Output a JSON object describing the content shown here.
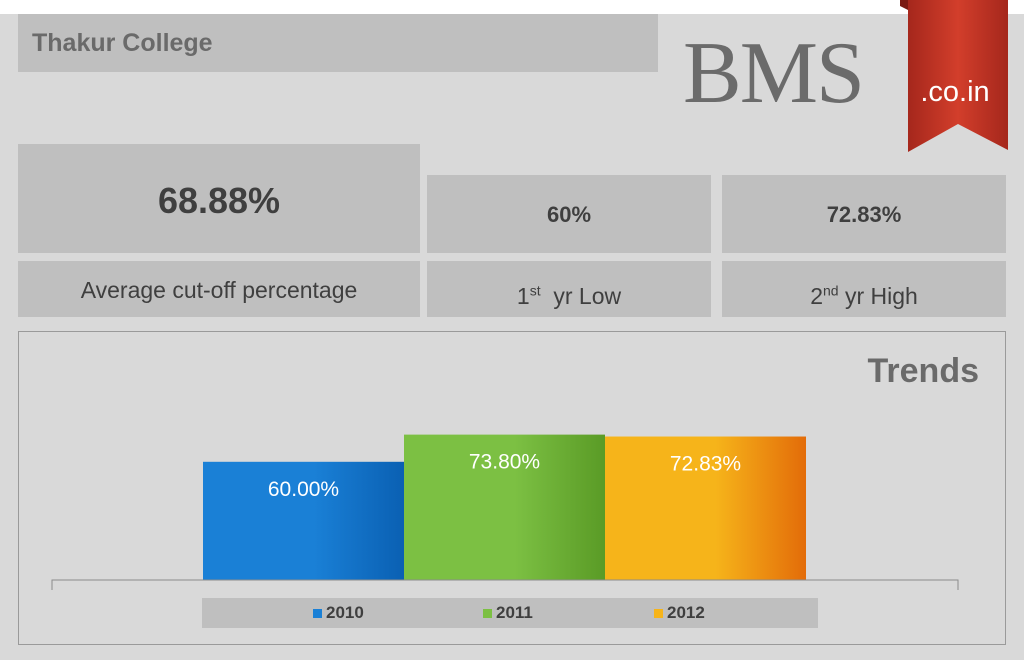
{
  "header": {
    "title": "Thakur College"
  },
  "logo": {
    "text": "BMS",
    "ribbon_text": ".co.in"
  },
  "stats": {
    "average": {
      "value": "68.88%",
      "label": "Average cut-off percentage"
    },
    "low": {
      "value": "60%",
      "label_prefix": "1",
      "label_sup": "st",
      "label_suffix": "  yr Low"
    },
    "high": {
      "value": "72.83%",
      "label_prefix": "2",
      "label_sup": "nd",
      "label_suffix": " yr High"
    }
  },
  "chart_title": "Trends",
  "colors": {
    "2010": "#1a80d6",
    "2011": "#7cc043",
    "2012": "#f6b41a"
  },
  "chart_data": {
    "type": "bar",
    "title": "Trends",
    "categories": [
      "2010",
      "2011",
      "2012"
    ],
    "values": [
      60.0,
      73.8,
      72.83
    ],
    "data_labels": [
      "60.00%",
      "73.80%",
      "72.83%"
    ],
    "legend": [
      "2010",
      "2011",
      "2012"
    ],
    "legend_position": "bottom",
    "xlabel": "",
    "ylabel": "",
    "grid": false
  }
}
